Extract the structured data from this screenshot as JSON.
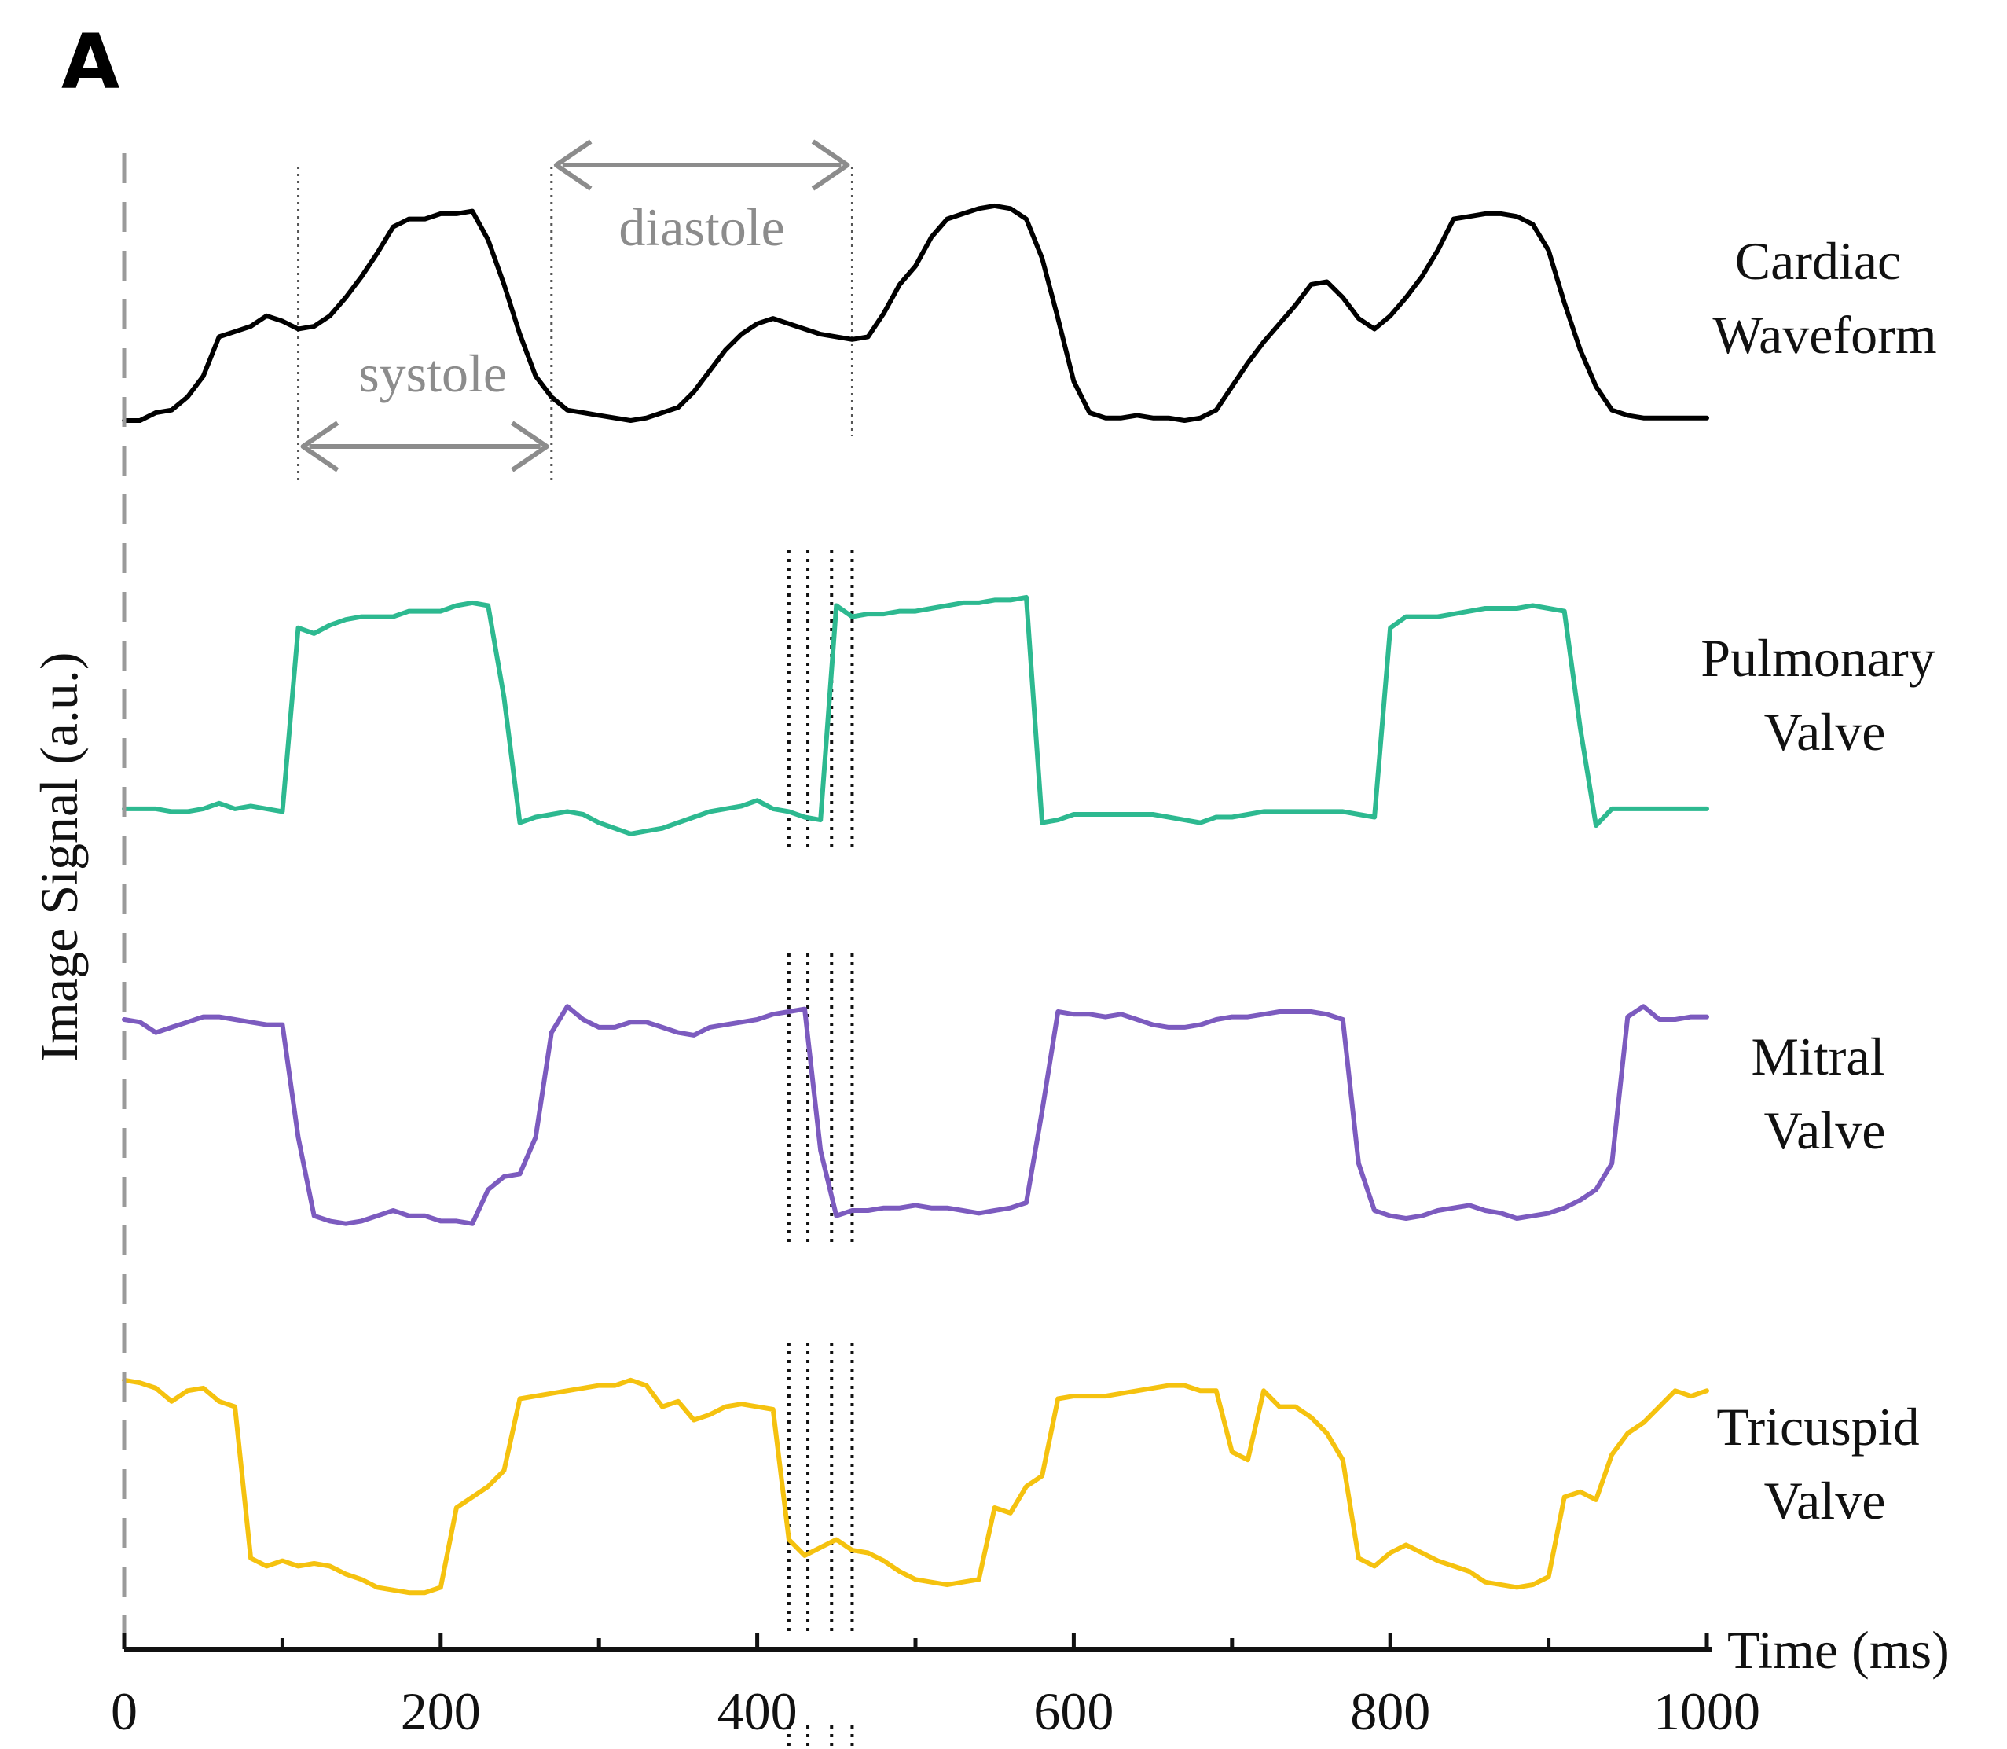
{
  "chart_data": {
    "type": "line",
    "panel_label": "A",
    "xlabel": "Time (ms)",
    "ylabel": "Image Signal (a.u.)",
    "xlim": [
      0,
      1000
    ],
    "xticks": [
      0,
      200,
      400,
      600,
      800,
      1000
    ],
    "x_minor_ticks": [
      100,
      300,
      500,
      700,
      900
    ],
    "annotations": {
      "systole": {
        "label": "systole",
        "start_ms": 110,
        "end_ms": 270
      },
      "diastole": {
        "label": "diastole",
        "start_ms": 270,
        "end_ms": 460
      },
      "highlight_ms": [
        420,
        432,
        447,
        460
      ]
    },
    "series": [
      {
        "name": "Cardiac Waveform",
        "label_lines": [
          "Cardiac",
          "Waveform"
        ],
        "color": "#000000",
        "ylim": [
          0,
          100
        ],
        "x": [
          0,
          10,
          20,
          30,
          40,
          50,
          60,
          70,
          80,
          90,
          100,
          110,
          120,
          130,
          140,
          150,
          160,
          170,
          180,
          190,
          200,
          210,
          220,
          230,
          240,
          250,
          260,
          270,
          280,
          290,
          300,
          310,
          320,
          330,
          340,
          350,
          360,
          370,
          380,
          390,
          400,
          410,
          420,
          430,
          440,
          450,
          460,
          470,
          480,
          490,
          500,
          510,
          520,
          530,
          540,
          550,
          560,
          570,
          580,
          590,
          600,
          610,
          620,
          630,
          640,
          650,
          660,
          670,
          680,
          690,
          700,
          710,
          720,
          730,
          740,
          750,
          760,
          770,
          780,
          790,
          800,
          810,
          820,
          830,
          840,
          850,
          860,
          870,
          880,
          890,
          900,
          910,
          920,
          930,
          940,
          950,
          960,
          970,
          980,
          990,
          1000
        ],
        "values": [
          3,
          3,
          6,
          7,
          12,
          20,
          35,
          37,
          39,
          43,
          41,
          38,
          39,
          43,
          50,
          58,
          67,
          77,
          80,
          80,
          82,
          82,
          83,
          72,
          55,
          36,
          20,
          12,
          7,
          6,
          5,
          4,
          3,
          4,
          6,
          8,
          14,
          22,
          30,
          36,
          40,
          42,
          40,
          38,
          36,
          35,
          34,
          35,
          44,
          55,
          62,
          73,
          80,
          82,
          84,
          85,
          84,
          80,
          65,
          42,
          18,
          6,
          4,
          4,
          5,
          4,
          4,
          3,
          4,
          7,
          16,
          25,
          33,
          40,
          47,
          55,
          56,
          50,
          42,
          38,
          43,
          50,
          58,
          68,
          80,
          81,
          82,
          82,
          81,
          78,
          68,
          48,
          30,
          16,
          7,
          5,
          4,
          4,
          4,
          4,
          4
        ]
      },
      {
        "name": "Pulmonary Valve",
        "label_lines": [
          "Pulmonary",
          "Valve"
        ],
        "color": "#2db990",
        "ylim": [
          0,
          100
        ],
        "x": [
          0,
          10,
          20,
          30,
          40,
          50,
          60,
          70,
          80,
          90,
          100,
          110,
          120,
          130,
          140,
          150,
          160,
          170,
          180,
          190,
          200,
          210,
          220,
          230,
          240,
          250,
          260,
          270,
          280,
          290,
          300,
          310,
          320,
          330,
          340,
          350,
          360,
          370,
          380,
          390,
          400,
          410,
          420,
          430,
          440,
          450,
          460,
          470,
          480,
          490,
          500,
          510,
          520,
          530,
          540,
          550,
          560,
          570,
          580,
          590,
          600,
          610,
          620,
          630,
          640,
          650,
          660,
          670,
          680,
          690,
          700,
          710,
          720,
          730,
          740,
          750,
          760,
          770,
          780,
          790,
          800,
          810,
          820,
          830,
          840,
          850,
          860,
          870,
          880,
          890,
          900,
          910,
          920,
          930,
          940,
          950,
          960,
          970,
          980,
          990,
          1000
        ],
        "values": [
          15,
          15,
          15,
          14,
          14,
          15,
          17,
          15,
          16,
          15,
          14,
          80,
          78,
          81,
          83,
          84,
          84,
          84,
          86,
          86,
          86,
          88,
          89,
          88,
          55,
          10,
          12,
          13,
          14,
          13,
          10,
          8,
          6,
          7,
          8,
          10,
          12,
          14,
          15,
          16,
          18,
          15,
          14,
          12,
          11,
          88,
          84,
          85,
          85,
          86,
          86,
          87,
          88,
          89,
          89,
          90,
          90,
          91,
          10,
          11,
          13,
          13,
          13,
          13,
          13,
          13,
          12,
          11,
          10,
          12,
          12,
          13,
          14,
          14,
          14,
          14,
          14,
          14,
          13,
          12,
          80,
          84,
          84,
          84,
          85,
          86,
          87,
          87,
          87,
          88,
          87,
          86,
          44,
          9,
          15,
          15,
          15,
          15,
          15,
          15,
          15
        ]
      },
      {
        "name": "Mitral Valve",
        "label_lines": [
          "Mitral",
          "Valve"
        ],
        "color": "#7c5bbf",
        "ylim": [
          0,
          100
        ],
        "x": [
          0,
          10,
          20,
          30,
          40,
          50,
          60,
          70,
          80,
          90,
          100,
          110,
          120,
          130,
          140,
          150,
          160,
          170,
          180,
          190,
          200,
          210,
          220,
          230,
          240,
          250,
          260,
          270,
          280,
          290,
          300,
          310,
          320,
          330,
          340,
          350,
          360,
          370,
          380,
          390,
          400,
          410,
          420,
          430,
          440,
          450,
          460,
          470,
          480,
          490,
          500,
          510,
          520,
          530,
          540,
          550,
          560,
          570,
          580,
          590,
          600,
          610,
          620,
          630,
          640,
          650,
          660,
          670,
          680,
          690,
          700,
          710,
          720,
          730,
          740,
          750,
          760,
          770,
          780,
          790,
          800,
          810,
          820,
          830,
          840,
          850,
          860,
          870,
          880,
          890,
          900,
          910,
          920,
          930,
          940,
          950,
          960,
          970,
          980,
          990,
          1000
        ],
        "values": [
          85,
          84,
          80,
          82,
          84,
          86,
          86,
          85,
          84,
          83,
          83,
          40,
          10,
          8,
          7,
          8,
          10,
          12,
          10,
          10,
          8,
          8,
          7,
          20,
          25,
          26,
          40,
          80,
          90,
          85,
          82,
          82,
          84,
          84,
          82,
          80,
          79,
          82,
          83,
          84,
          85,
          87,
          88,
          89,
          35,
          10,
          12,
          12,
          13,
          13,
          14,
          13,
          13,
          12,
          11,
          12,
          13,
          15,
          50,
          88,
          87,
          87,
          86,
          87,
          85,
          83,
          82,
          82,
          83,
          85,
          86,
          86,
          87,
          88,
          88,
          88,
          87,
          85,
          30,
          12,
          10,
          9,
          10,
          12,
          13,
          14,
          12,
          11,
          9,
          10,
          11,
          13,
          16,
          20,
          30,
          86,
          90,
          85,
          85,
          86,
          86
        ]
      },
      {
        "name": "Tricuspid Valve",
        "label_lines": [
          "Tricuspid",
          "Valve"
        ],
        "color": "#f5c20f",
        "ylim": [
          0,
          100
        ],
        "x": [
          0,
          10,
          20,
          30,
          40,
          50,
          60,
          70,
          80,
          90,
          100,
          110,
          120,
          130,
          140,
          150,
          160,
          170,
          180,
          190,
          200,
          210,
          220,
          230,
          240,
          250,
          260,
          270,
          280,
          290,
          300,
          310,
          320,
          330,
          340,
          350,
          360,
          370,
          380,
          390,
          400,
          410,
          420,
          430,
          440,
          450,
          460,
          470,
          480,
          490,
          500,
          510,
          520,
          530,
          540,
          550,
          560,
          570,
          580,
          590,
          600,
          610,
          620,
          630,
          640,
          650,
          660,
          670,
          680,
          690,
          700,
          710,
          720,
          730,
          740,
          750,
          760,
          770,
          780,
          790,
          800,
          810,
          820,
          830,
          840,
          850,
          860,
          870,
          880,
          890,
          900,
          910,
          920,
          930,
          940,
          950,
          960,
          970,
          980,
          990,
          1000
        ],
        "values": [
          90,
          89,
          87,
          82,
          86,
          87,
          82,
          80,
          23,
          20,
          22,
          20,
          21,
          20,
          17,
          15,
          12,
          11,
          10,
          10,
          12,
          42,
          46,
          50,
          56,
          83,
          84,
          85,
          86,
          87,
          88,
          88,
          90,
          88,
          80,
          82,
          75,
          77,
          80,
          81,
          80,
          79,
          30,
          24,
          27,
          30,
          26,
          25,
          22,
          18,
          15,
          14,
          13,
          14,
          15,
          42,
          40,
          50,
          54,
          83,
          84,
          84,
          84,
          85,
          86,
          87,
          88,
          88,
          86,
          86,
          63,
          60,
          86,
          80,
          80,
          76,
          70,
          60,
          23,
          20,
          25,
          28,
          25,
          22,
          20,
          18,
          14,
          13,
          12,
          13,
          16,
          46,
          48,
          45,
          62,
          70,
          74,
          80,
          86,
          84,
          86
        ]
      }
    ]
  }
}
